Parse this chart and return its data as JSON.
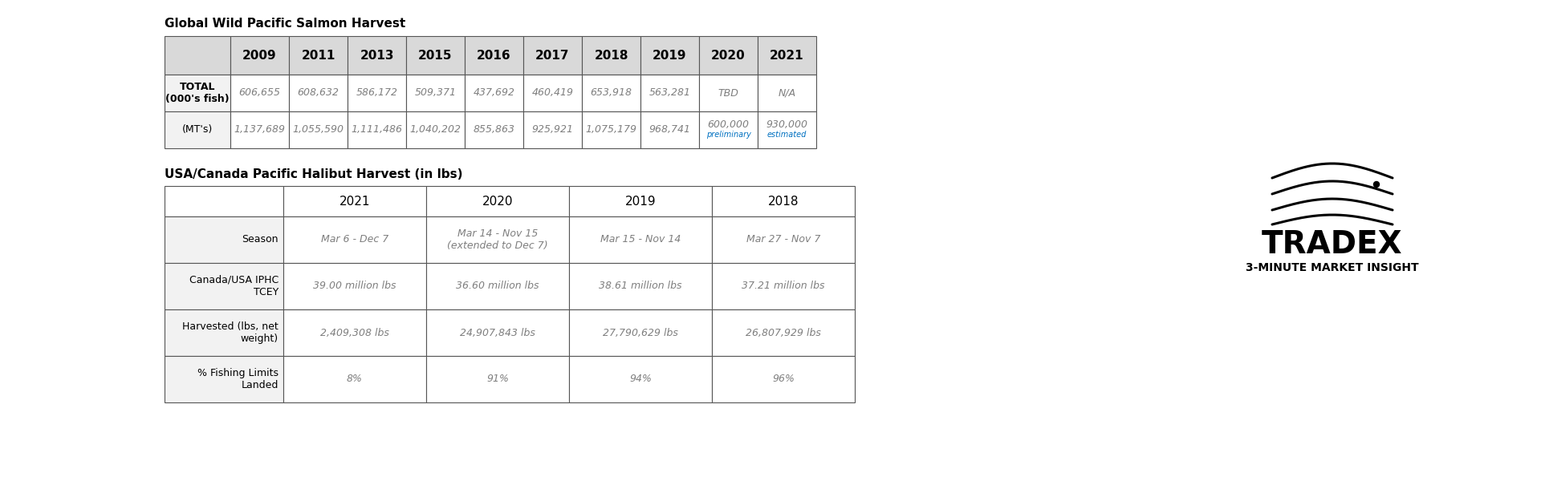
{
  "title1": "Global Wild Pacific Salmon Harvest",
  "title2": "USA/Canada Pacific Halibut Harvest (in lbs)",
  "table1": {
    "col_headers": [
      "",
      "2009",
      "2011",
      "2013",
      "2015",
      "2016",
      "2017",
      "2018",
      "2019",
      "2020",
      "2021"
    ],
    "row1_label": "TOTAL\n(000's fish)",
    "row1_values": [
      "606,655",
      "608,632",
      "586,172",
      "509,371",
      "437,692",
      "460,419",
      "653,918",
      "563,281",
      "TBD",
      "N/A"
    ],
    "row2_label": "(MT's)",
    "row2_values": [
      "1,137,689",
      "1,055,590",
      "1,111,486",
      "1,040,202",
      "855,863",
      "925,921",
      "1,075,179",
      "968,741",
      "600,000\npreliminary",
      "930,000\nestimated"
    ]
  },
  "table2": {
    "col_headers": [
      "",
      "2021",
      "2020",
      "2019",
      "2018"
    ],
    "rows": [
      [
        "Season",
        "Mar 6 - Dec 7",
        "Mar 14 - Nov 15\n(extended to Dec 7)",
        "Mar 15 - Nov 14",
        "Mar 27 - Nov 7"
      ],
      [
        "Canada/USA IPHC\nTCEY",
        "39.00 million lbs",
        "36.60 million lbs",
        "38.61 million lbs",
        "37.21 million lbs"
      ],
      [
        "Harvested (lbs, net\nweight)",
        "2,409,308 lbs",
        "24,907,843 lbs",
        "27,790,629 lbs",
        "26,807,929 lbs"
      ],
      [
        "% Fishing Limits\nLanded",
        "8%",
        "91%",
        "94%",
        "96%"
      ]
    ]
  },
  "header_bg": "#d9d9d9",
  "cell_bg": "#ffffff",
  "label_bg": "#f2f2f2",
  "border_color": "#555555",
  "text_color": "#000000",
  "title_color": "#000000",
  "bg_color": "#ffffff",
  "data_text_color": "#7f7f7f",
  "small_note_color": "#0070c0"
}
